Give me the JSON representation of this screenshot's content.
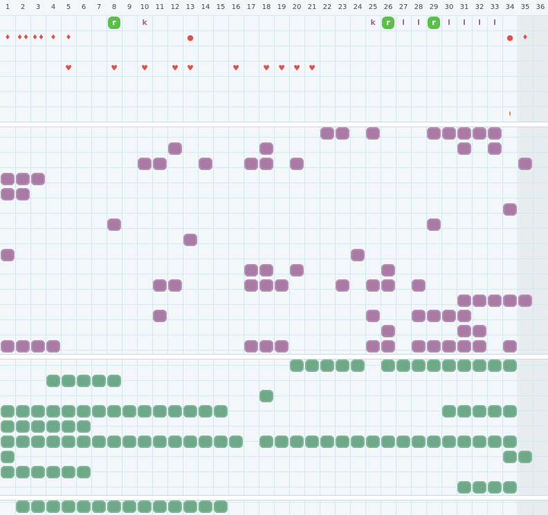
{
  "columns": [
    "1",
    "2",
    "3",
    "4",
    "5",
    "6",
    "7",
    "8",
    "9",
    "10",
    "11",
    "12",
    "13",
    "14",
    "15",
    "16",
    "17",
    "18",
    "19",
    "20",
    "21",
    "22",
    "23",
    "24",
    "25",
    "26",
    "27",
    "28",
    "29",
    "30",
    "31",
    "32",
    "33",
    "34",
    "35",
    "36"
  ],
  "colors": {
    "purple": "#a87aa4",
    "green": "#6fa888",
    "badge": "#5cbf4c",
    "red": "#d9534f",
    "letter": "#9a6a96",
    "orange": "#e8763a"
  },
  "top_markers": [
    {
      "r": 1,
      "c": 8,
      "kind": "badge",
      "text": "r"
    },
    {
      "r": 1,
      "c": 10,
      "kind": "letter",
      "text": "k"
    },
    {
      "r": 1,
      "c": 25,
      "kind": "letter",
      "text": "k"
    },
    {
      "r": 1,
      "c": 26,
      "kind": "badge",
      "text": "r"
    },
    {
      "r": 1,
      "c": 27,
      "kind": "letter",
      "text": "l"
    },
    {
      "r": 1,
      "c": 28,
      "kind": "letter",
      "text": "l"
    },
    {
      "r": 1,
      "c": 29,
      "kind": "badge",
      "text": "r"
    },
    {
      "r": 1,
      "c": 30,
      "kind": "letter",
      "text": "l"
    },
    {
      "r": 1,
      "c": 31,
      "kind": "letter",
      "text": "l"
    },
    {
      "r": 1,
      "c": 32,
      "kind": "letter",
      "text": "l"
    },
    {
      "r": 1,
      "c": 33,
      "kind": "letter",
      "text": "l"
    },
    {
      "r": 2,
      "c": 1,
      "kind": "drop",
      "text": "♦"
    },
    {
      "r": 2,
      "c": 2,
      "kind": "drop",
      "text": "♦♦"
    },
    {
      "r": 2,
      "c": 3,
      "kind": "drop",
      "text": "♦♦"
    },
    {
      "r": 2,
      "c": 4,
      "kind": "drop",
      "text": "♦"
    },
    {
      "r": 2,
      "c": 5,
      "kind": "drop",
      "text": "♦"
    },
    {
      "r": 2,
      "c": 13,
      "kind": "dot",
      "text": "●"
    },
    {
      "r": 2,
      "c": 34,
      "kind": "dot",
      "text": "●"
    },
    {
      "r": 2,
      "c": 35,
      "kind": "drop",
      "text": "♦"
    },
    {
      "r": 4,
      "c": 5,
      "kind": "heart",
      "text": "♥"
    },
    {
      "r": 4,
      "c": 8,
      "kind": "heart",
      "text": "♥"
    },
    {
      "r": 4,
      "c": 10,
      "kind": "heart",
      "text": "♥"
    },
    {
      "r": 4,
      "c": 12,
      "kind": "heart",
      "text": "♥"
    },
    {
      "r": 4,
      "c": 13,
      "kind": "heart",
      "text": "♥"
    },
    {
      "r": 4,
      "c": 16,
      "kind": "heart",
      "text": "♥"
    },
    {
      "r": 4,
      "c": 18,
      "kind": "heart",
      "text": "♥"
    },
    {
      "r": 4,
      "c": 19,
      "kind": "heart",
      "text": "♥"
    },
    {
      "r": 4,
      "c": 20,
      "kind": "heart",
      "text": "♥"
    },
    {
      "r": 4,
      "c": 21,
      "kind": "heart",
      "text": "♥"
    },
    {
      "r": 7,
      "c": 34,
      "kind": "orange",
      "text": "ı"
    }
  ],
  "purple_rows": [
    [
      22,
      23,
      25,
      29,
      30,
      31,
      32,
      33
    ],
    [
      12,
      18,
      31,
      33
    ],
    [
      10,
      11,
      14,
      17,
      18,
      20,
      35
    ],
    [
      1,
      2,
      3
    ],
    [
      1,
      2
    ],
    [
      34
    ],
    [
      8,
      29
    ],
    [
      13
    ],
    [
      1,
      24
    ],
    [
      17,
      18,
      20,
      26
    ],
    [
      11,
      12,
      17,
      18,
      19,
      23,
      25,
      26,
      28
    ],
    [
      31,
      32,
      33,
      34,
      35
    ],
    [
      11,
      25,
      28,
      29,
      30,
      31
    ],
    [
      26,
      31,
      32
    ],
    [
      1,
      2,
      3,
      4,
      17,
      18,
      19,
      25,
      26,
      28,
      29,
      30,
      31,
      32,
      34
    ]
  ],
  "green_rows": [
    [
      20,
      21,
      22,
      23,
      24,
      26,
      27,
      28,
      29,
      30,
      31,
      32,
      33,
      34
    ],
    [
      4,
      5,
      6,
      7,
      8
    ],
    [
      18
    ],
    [
      1,
      2,
      3,
      4,
      5,
      6,
      7,
      8,
      9,
      10,
      11,
      12,
      13,
      14,
      15,
      30,
      31,
      32,
      33,
      34
    ],
    [
      1,
      2,
      3,
      4,
      5,
      6
    ],
    [
      1,
      2,
      3,
      4,
      5,
      6,
      7,
      8,
      9,
      10,
      11,
      12,
      13,
      14,
      15,
      16,
      18,
      19,
      20,
      21,
      22,
      23,
      24,
      25,
      26,
      27,
      28,
      29,
      30,
      31,
      32,
      33,
      34
    ],
    [
      1,
      34,
      35
    ],
    [
      1,
      2,
      3,
      4,
      5,
      6
    ],
    [
      31,
      32,
      33,
      34
    ]
  ],
  "bottom_rows": [
    [
      2,
      3,
      4,
      5,
      6,
      7,
      8,
      9,
      10,
      11,
      12,
      13,
      14,
      15
    ]
  ]
}
